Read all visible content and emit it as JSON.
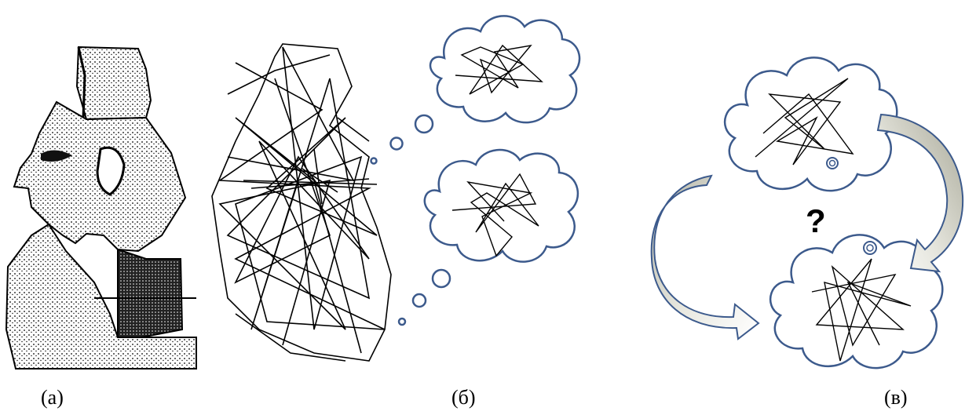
{
  "captions": {
    "a": "(а)",
    "b": "(б)",
    "c": "(в)"
  },
  "question_mark": "?",
  "colors": {
    "cloud_stroke": "#3c5a8c",
    "arrow_fill_light": "#f2f2ec",
    "arrow_fill_dark": "#b8b8a8",
    "ink": "#000000"
  }
}
